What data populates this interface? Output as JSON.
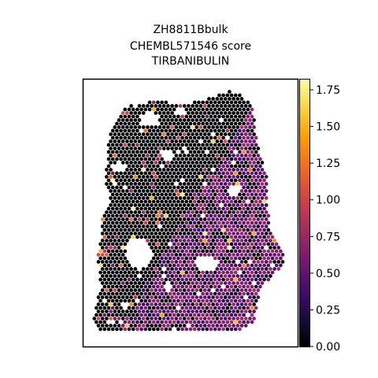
{
  "chart_data": {
    "type": "scatter",
    "subtype": "spatial-hex-spot-map",
    "title_lines": [
      "ZH8811Bbulk",
      "CHEMBL571546 score",
      "TIRBANIBULIN"
    ],
    "xlabel": "",
    "ylabel": "",
    "colorbar": {
      "colormap": "inferno",
      "vmin": 0.0,
      "vmax": 1.82,
      "ticks": [
        0.0,
        0.25,
        0.5,
        0.75,
        1.0,
        1.25,
        1.5,
        1.75
      ],
      "tick_labels": [
        "0.00",
        "0.25",
        "0.50",
        "0.75",
        "1.00",
        "1.25",
        "1.50",
        "1.75"
      ]
    },
    "value_distribution": {
      "background_value": 0.0,
      "typical_right_region_range": [
        0.3,
        0.8
      ],
      "max_observed": 1.82
    },
    "grid": false,
    "legend": "colorbar-right",
    "ticks_on_spatial_axes": false
  }
}
